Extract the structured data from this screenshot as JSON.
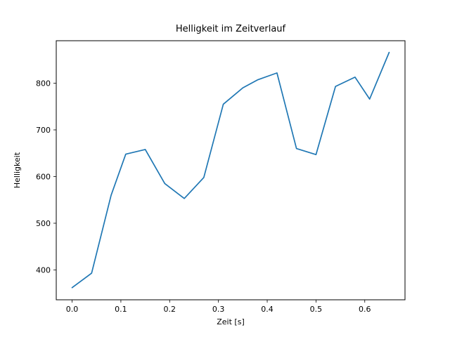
{
  "chart_data": {
    "type": "line",
    "title": "Helligkeit im Zeitverlauf",
    "xlabel": "Zeit [s]",
    "ylabel": "Helligkeit",
    "x": [
      0.0,
      0.04,
      0.08,
      0.11,
      0.15,
      0.19,
      0.23,
      0.27,
      0.31,
      0.35,
      0.38,
      0.42,
      0.46,
      0.5,
      0.54,
      0.58,
      0.61,
      0.65
    ],
    "y": [
      362,
      393,
      560,
      648,
      658,
      585,
      553,
      598,
      755,
      790,
      807,
      822,
      660,
      647,
      793,
      813,
      766,
      866
    ],
    "xlim": [
      -0.0325,
      0.6825
    ],
    "ylim": [
      336,
      891
    ],
    "xticks": [
      0.0,
      0.1,
      0.2,
      0.3,
      0.4,
      0.5,
      0.6
    ],
    "xtick_labels": [
      "0.0",
      "0.1",
      "0.2",
      "0.3",
      "0.4",
      "0.5",
      "0.6"
    ],
    "yticks": [
      400,
      500,
      600,
      700,
      800
    ],
    "ytick_labels": [
      "400",
      "500",
      "600",
      "700",
      "800"
    ],
    "line_color": "#1f77b4",
    "axis_color": "#000000",
    "background_color": "#ffffff",
    "grid": false,
    "legend_position": "none"
  }
}
